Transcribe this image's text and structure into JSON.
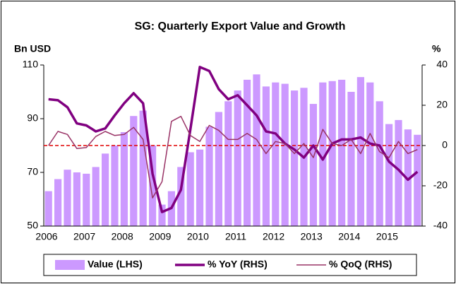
{
  "chart_data": {
    "type": "bar",
    "title": "SG: Quarterly Export Value and Growth",
    "y_label": "Bn USD",
    "y2_label": "%",
    "categories": [
      "2006",
      null,
      null,
      null,
      "2007",
      null,
      null,
      null,
      "2008",
      null,
      null,
      null,
      "2009",
      null,
      null,
      null,
      "2010",
      null,
      null,
      null,
      "2011",
      null,
      null,
      null,
      "2012",
      null,
      null,
      null,
      "2013",
      null,
      null,
      null,
      "2014",
      null,
      null,
      null,
      "2015",
      null,
      null,
      null
    ],
    "series": [
      {
        "name": "Value (LHS)",
        "type": "bar",
        "color": "#cc99ff",
        "axis": "y",
        "values": [
          63,
          67.5,
          71,
          70,
          69.5,
          72,
          77,
          80,
          85,
          91,
          93,
          80,
          58,
          63,
          72,
          77.5,
          78.5,
          87,
          92.5,
          96.5,
          100.5,
          104.5,
          106.5,
          102,
          103.5,
          103,
          100.5,
          101.5,
          95.5,
          103.5,
          104,
          104.5,
          100,
          105.5,
          103.5,
          96.5,
          88,
          89.5,
          86,
          84
        ]
      },
      {
        "name": "% YoY (RHS)",
        "type": "line",
        "color": "#800080",
        "axis": "y2",
        "values": [
          23,
          22.5,
          19,
          11,
          10,
          7,
          8.5,
          15,
          21,
          26,
          21,
          -14,
          -33,
          -31,
          -22,
          8,
          39,
          37,
          28,
          23,
          25,
          20,
          15,
          7,
          6,
          1,
          -2,
          -6,
          0,
          -7,
          1,
          3,
          3,
          4,
          1,
          0,
          -8,
          -12,
          -17,
          -13
        ]
      },
      {
        "name": "% QoQ (RHS)",
        "type": "line",
        "color": "#993366",
        "axis": "y2",
        "values": [
          0,
          7,
          5.5,
          -1.5,
          -1,
          4.5,
          7,
          5,
          5.5,
          9,
          3,
          -26,
          -18,
          12,
          14.5,
          5,
          2,
          10,
          7.5,
          3,
          3,
          6,
          3,
          -4,
          2,
          1,
          -4,
          1,
          -6,
          8,
          1,
          0,
          3,
          -4,
          6,
          -3,
          -6,
          2,
          -4,
          -2
        ]
      }
    ],
    "zero_line": {
      "value": 0,
      "axis": "y2",
      "color": "#e00000"
    },
    "ylim": [
      50,
      110
    ],
    "yticks": [
      50,
      70,
      90,
      110
    ],
    "y2lim": [
      -40,
      40
    ],
    "y2ticks": [
      -40,
      -20,
      0,
      20,
      40
    ],
    "legend": "bottom"
  }
}
